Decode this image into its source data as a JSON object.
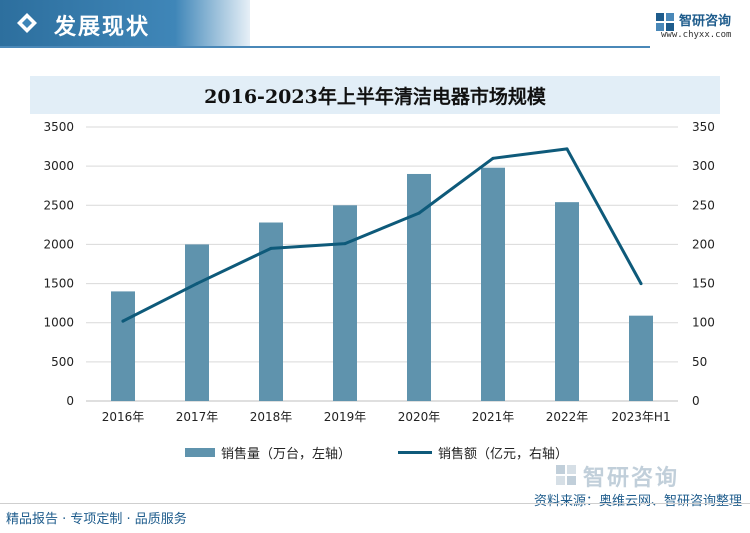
{
  "header": {
    "title": "发展现状",
    "logo_name": "智研咨询",
    "logo_url": "www.chyxx.com"
  },
  "chart_data": {
    "type": "bar",
    "title": "2016-2023年上半年清洁电器市场规模",
    "categories": [
      "2016年",
      "2017年",
      "2018年",
      "2019年",
      "2020年",
      "2021年",
      "2022年",
      "2023年H1"
    ],
    "series": [
      {
        "name": "销售量（万台，左轴）",
        "type": "bar",
        "axis": "left",
        "color": "#5f93ad",
        "values": [
          1400,
          2000,
          2280,
          2500,
          2900,
          2980,
          2540,
          1090
        ]
      },
      {
        "name": "销售额（亿元，右轴）",
        "type": "line",
        "axis": "right",
        "color": "#0e5a7a",
        "values": [
          102,
          150,
          195,
          201,
          240,
          310,
          322,
          150
        ]
      }
    ],
    "left_axis": {
      "min": 0,
      "max": 3500,
      "ticks": [
        "0",
        "500",
        "1000",
        "1500",
        "2000",
        "2500",
        "3000",
        "3500"
      ]
    },
    "right_axis": {
      "min": 0,
      "max": 350,
      "ticks": [
        "0",
        "50",
        "100",
        "150",
        "200",
        "250",
        "300",
        "350"
      ]
    },
    "grid": true,
    "legend": "bottom"
  },
  "footer": {
    "left_text": "精品报告 · 专项定制 · 品质服务",
    "source_text": "资料来源：奥维云网、智研咨询整理",
    "brand": "智研咨询"
  }
}
